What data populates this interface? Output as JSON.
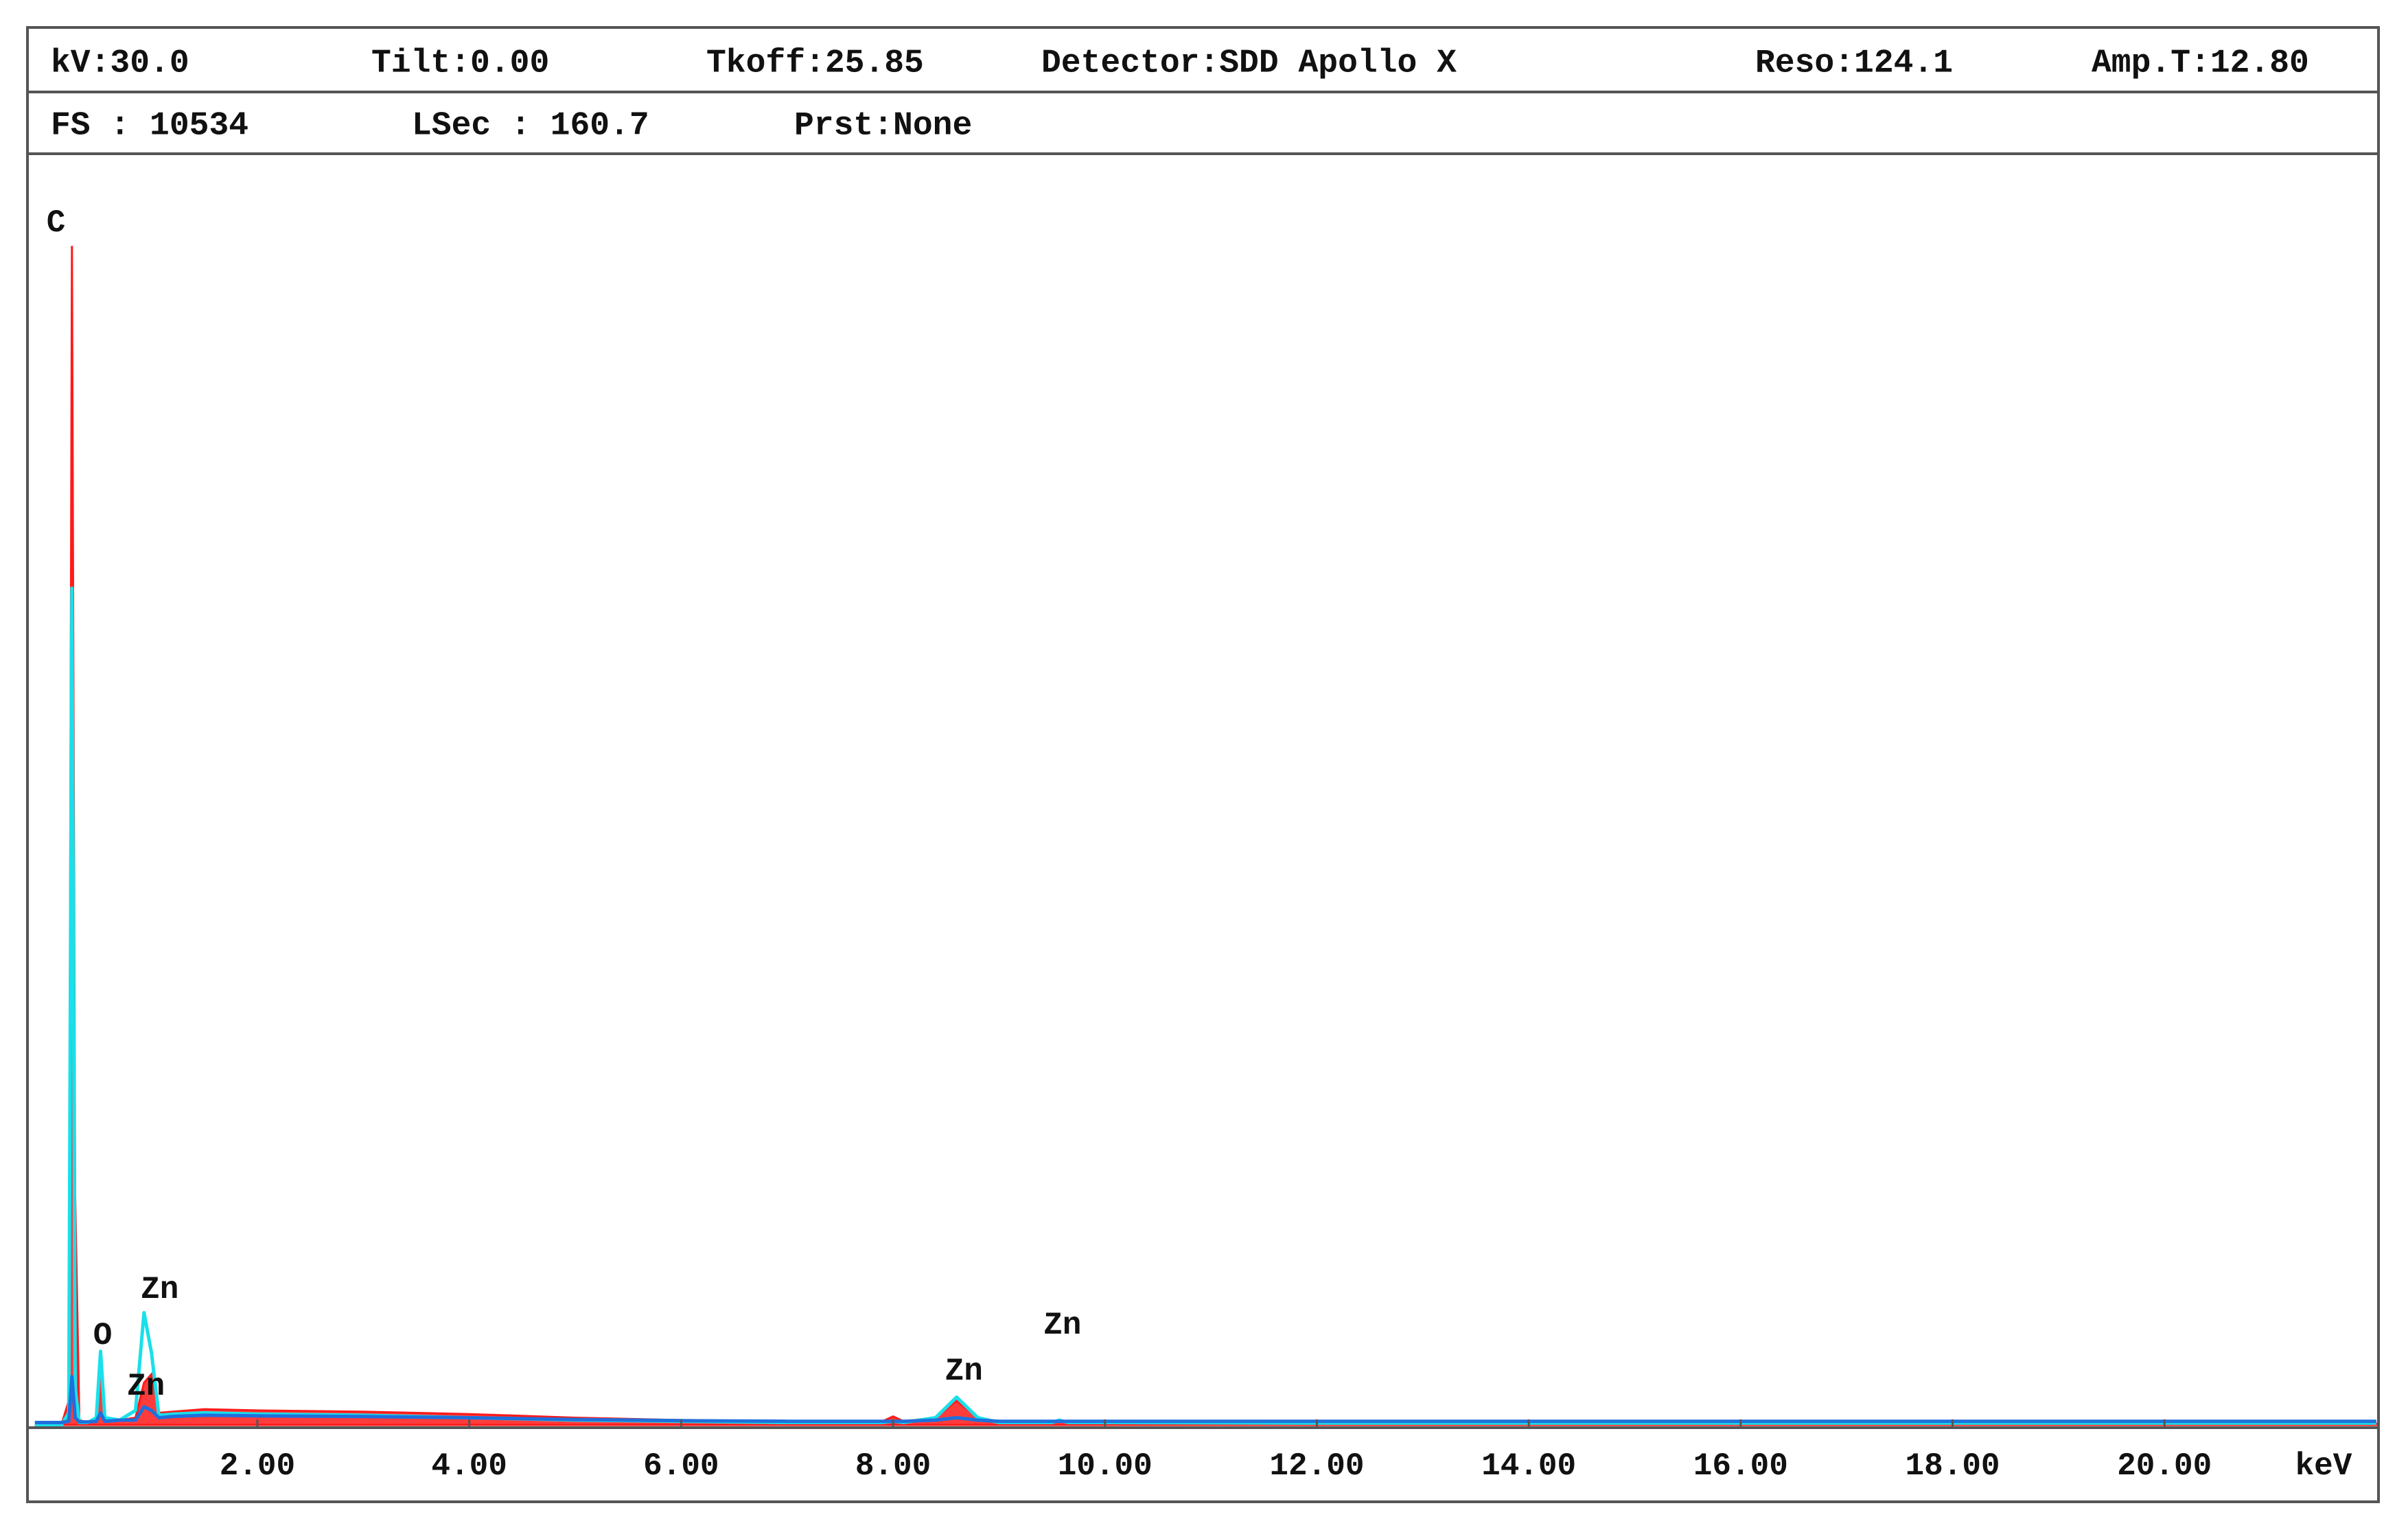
{
  "chart_data": {
    "type": "line",
    "header_rows": [
      [
        "kV:30.0",
        "Tilt:0.00",
        "Tkoff:25.85",
        "Detector:SDD Apollo X",
        "Reso:124.1",
        "Amp.T:12.80"
      ],
      [
        "FS : 10534",
        "LSec : 160.7",
        "Prst:None"
      ]
    ],
    "x_label": "keV",
    "x": [
      -0.1,
      0.15,
      0.22,
      0.25,
      0.28,
      0.32,
      0.4,
      0.48,
      0.52,
      0.56,
      0.7,
      0.85,
      0.93,
      1.0,
      1.07,
      1.2,
      1.5,
      2,
      3,
      4,
      5,
      6,
      7,
      7.9,
      8.0,
      8.1,
      8.4,
      8.6,
      8.8,
      9.0,
      9.5,
      9.57,
      9.65,
      10,
      12,
      14,
      16,
      18,
      20,
      22
    ],
    "series": [
      {
        "color": "#ff1a1a",
        "fill": true,
        "values": [
          0,
          0,
          200,
          9770,
          1900,
          40,
          20,
          60,
          480,
          60,
          40,
          60,
          350,
          420,
          100,
          110,
          130,
          120,
          110,
          90,
          60,
          40,
          30,
          30,
          70,
          30,
          60,
          200,
          60,
          30,
          20,
          30,
          20,
          20,
          10,
          10,
          10,
          10,
          10,
          10
        ]
      },
      {
        "color": "#19e0ea",
        "fill": false,
        "values": [
          0,
          0,
          100,
          6934,
          300,
          20,
          20,
          60,
          610,
          60,
          40,
          120,
          930,
          600,
          80,
          90,
          100,
          90,
          80,
          60,
          40,
          30,
          20,
          20,
          30,
          20,
          60,
          230,
          60,
          20,
          20,
          40,
          20,
          20,
          15,
          15,
          15,
          15,
          15,
          15
        ]
      },
      {
        "color": "#1f6fdc",
        "fill": false,
        "values": [
          20,
          20,
          30,
          400,
          60,
          25,
          25,
          30,
          100,
          30,
          40,
          40,
          150,
          120,
          60,
          70,
          80,
          75,
          70,
          60,
          45,
          35,
          30,
          30,
          30,
          30,
          40,
          60,
          40,
          30,
          30,
          30,
          30,
          30,
          30,
          30,
          30,
          30,
          30,
          30
        ]
      }
    ],
    "xlim": [
      -0.17,
      22.02
    ],
    "ylim": [
      0,
      10534
    ],
    "xticks": [
      {
        "value": 2,
        "label": "2.00"
      },
      {
        "value": 4,
        "label": "4.00"
      },
      {
        "value": 6,
        "label": "6.00"
      },
      {
        "value": 8,
        "label": "8.00"
      },
      {
        "value": 10,
        "label": "10.00"
      },
      {
        "value": 12,
        "label": "12.00"
      },
      {
        "value": 14,
        "label": "14.00"
      },
      {
        "value": 16,
        "label": "16.00"
      },
      {
        "value": 18,
        "label": "18.00"
      },
      {
        "value": 20,
        "label": "20.00"
      }
    ],
    "annotations": [
      {
        "text": "C",
        "x": 0.01,
        "y": 9960
      },
      {
        "text": "O",
        "x": 0.45,
        "y": 740
      },
      {
        "text": "Zn",
        "x": 0.9,
        "y": 1120
      },
      {
        "text": "Zn",
        "x": 0.77,
        "y": 318
      },
      {
        "text": "Zn",
        "x": 8.49,
        "y": 445
      },
      {
        "text": "Zn",
        "x": 9.42,
        "y": 827
      }
    ]
  }
}
